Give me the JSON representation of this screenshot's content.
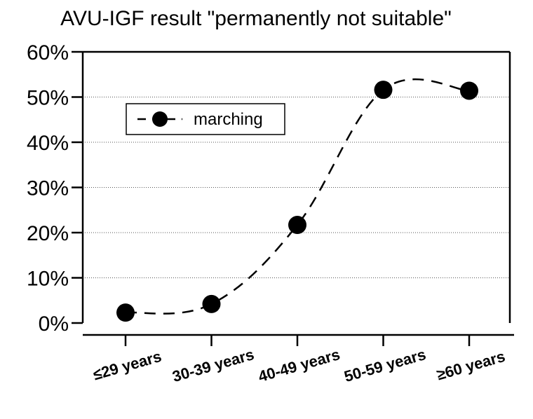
{
  "chart_data": {
    "type": "line",
    "title": "AVU-IGF result \"permanently not suitable\"",
    "categories": [
      "≤29 years",
      "30-39 years",
      "40-49 years",
      "50-59 years",
      "≥60 years"
    ],
    "series": [
      {
        "name": "marching",
        "values": [
          2.3,
          4.2,
          21.7,
          51.6,
          51.4
        ]
      }
    ],
    "ylim": [
      0,
      60
    ],
    "yticks": [
      0,
      10,
      20,
      30,
      40,
      50,
      60
    ],
    "ytick_labels": [
      "0%",
      "10%",
      "20%",
      "30%",
      "40%",
      "50%",
      "60%"
    ],
    "xlabel": "",
    "ylabel": "",
    "grid": "horizontal dotted",
    "legend_position": "top-left",
    "colors": {
      "line": "#000000",
      "marker": "#000000",
      "grid": "#555555"
    }
  }
}
